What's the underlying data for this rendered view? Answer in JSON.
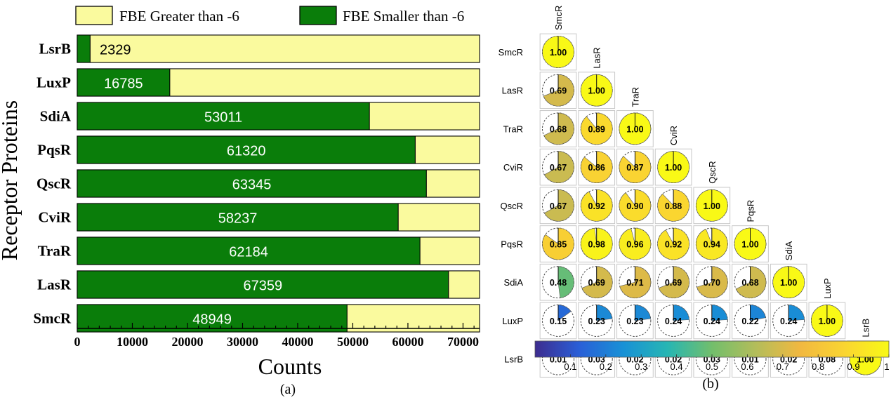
{
  "chart_data": [
    {
      "type": "bar",
      "orientation": "horizontal",
      "stacked": true,
      "panel_label": "(a)",
      "title": "",
      "xlabel": "Counts",
      "ylabel": "Receptor Proteins",
      "xlim": [
        0,
        73000
      ],
      "x_ticks": [
        0,
        10000,
        20000,
        30000,
        40000,
        50000,
        60000,
        70000
      ],
      "categories": [
        "LsrB",
        "LuxP",
        "SdiA",
        "PqsR",
        "QscR",
        "CviR",
        "TraR",
        "LasR",
        "SmcR"
      ],
      "series": [
        {
          "name": "FBE Smaller than -6",
          "color": "#0a7d0a",
          "values": [
            2329,
            16785,
            53011,
            61320,
            63345,
            58237,
            62184,
            67359,
            48949
          ]
        },
        {
          "name": "FBE Greater than -6",
          "color": "#fafa9e",
          "values": [
            70671,
            56215,
            19989,
            11680,
            9655,
            14763,
            10816,
            5641,
            24051
          ]
        }
      ],
      "data_labels": [
        "2329",
        "16785",
        "53011",
        "61320",
        "63345",
        "58237",
        "62184",
        "67359",
        "48949"
      ],
      "legend": [
        "FBE Greater than -6",
        "FBE Smaller than -6"
      ],
      "legend_position": "top",
      "grid": false
    },
    {
      "type": "heatmap",
      "style": "lower-triangular pie correlation matrix",
      "panel_label": "(b)",
      "title": "",
      "labels": [
        "SmcR",
        "LasR",
        "TraR",
        "CviR",
        "QscR",
        "PqsR",
        "SdiA",
        "LuxP",
        "LsrB"
      ],
      "matrix_rows": [
        [
          "1.00"
        ],
        [
          "0.69",
          "1.00"
        ],
        [
          "0.68",
          "0.89",
          "1.00"
        ],
        [
          "0.67",
          "0.86",
          "0.87",
          "1.00"
        ],
        [
          "0.67",
          "0.92",
          "0.90",
          "0.88",
          "1.00"
        ],
        [
          "0.85",
          "0.98",
          "0.96",
          "0.92",
          "0.94",
          "1.00"
        ],
        [
          "0.48",
          "0.69",
          "0.71",
          "0.69",
          "0.70",
          "0.68",
          "1.00"
        ],
        [
          "0.15",
          "0.23",
          "0.23",
          "0.24",
          "0.24",
          "0.22",
          "0.24",
          "1.00"
        ],
        [
          "0.01",
          "0.03",
          "0.02",
          "0.02",
          "0.03",
          "0.01",
          "0.02",
          "0.08",
          "1.00"
        ]
      ],
      "colorbar": {
        "range": [
          0,
          1
        ],
        "ticks": [
          "0.1",
          "0.2",
          "0.3",
          "0.4",
          "0.5",
          "0.6",
          "0.7",
          "0.8",
          "0.9",
          "1"
        ],
        "colormap": [
          "#3d2c8f",
          "#2a5fd7",
          "#1891d6",
          "#27b6b3",
          "#72be6c",
          "#b4bd5a",
          "#f1b840",
          "#fad531",
          "#f9f916"
        ]
      },
      "grid": true
    }
  ]
}
